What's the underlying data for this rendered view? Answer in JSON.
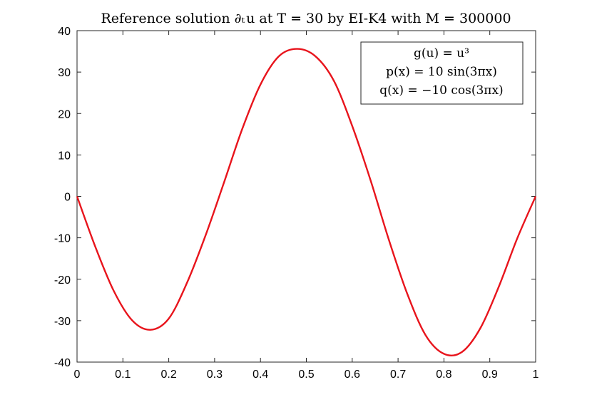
{
  "chart_data": {
    "type": "line",
    "title": "Reference solution ∂ₜ u at T = 30 by EI-K4 with M = 300000",
    "xlabel": "",
    "ylabel": "",
    "xlim": [
      0,
      1
    ],
    "ylim": [
      -40,
      40
    ],
    "xticks": [
      0,
      0.1,
      0.2,
      0.3,
      0.4,
      0.5,
      0.6,
      0.7,
      0.8,
      0.9,
      1
    ],
    "xtick_labels": [
      "0",
      "0.1",
      "0.2",
      "0.3",
      "0.4",
      "0.5",
      "0.6",
      "0.7",
      "0.8",
      "0.9",
      "1"
    ],
    "yticks": [
      -40,
      -30,
      -20,
      -10,
      0,
      10,
      20,
      30,
      40
    ],
    "ytick_labels": [
      "-40",
      "-30",
      "-20",
      "-10",
      "0",
      "10",
      "20",
      "30",
      "40"
    ],
    "grid": false,
    "legend_placement": "top-right",
    "legend_lines": [
      "g(u) = u³",
      "p(x) = 10 sin(3πx)",
      "q(x) = −10 cos(3πx)"
    ],
    "series": [
      {
        "color": "#e8141c",
        "x": [
          0,
          0.04,
          0.08,
          0.12,
          0.16,
          0.2,
          0.24,
          0.28,
          0.32,
          0.36,
          0.4,
          0.44,
          0.48,
          0.52,
          0.56,
          0.6,
          0.64,
          0.68,
          0.72,
          0.76,
          0.8,
          0.84,
          0.88,
          0.92,
          0.96,
          1
        ],
        "y": [
          0,
          -12.2,
          -22.8,
          -29.9,
          -32.2,
          -29.5,
          -20.8,
          -9.5,
          3.2,
          16.2,
          27.0,
          33.8,
          35.6,
          33.8,
          27.9,
          17.0,
          3.9,
          -10.5,
          -23.5,
          -33.5,
          -38.0,
          -37.5,
          -31.7,
          -21.7,
          -10.1,
          0
        ]
      }
    ]
  }
}
